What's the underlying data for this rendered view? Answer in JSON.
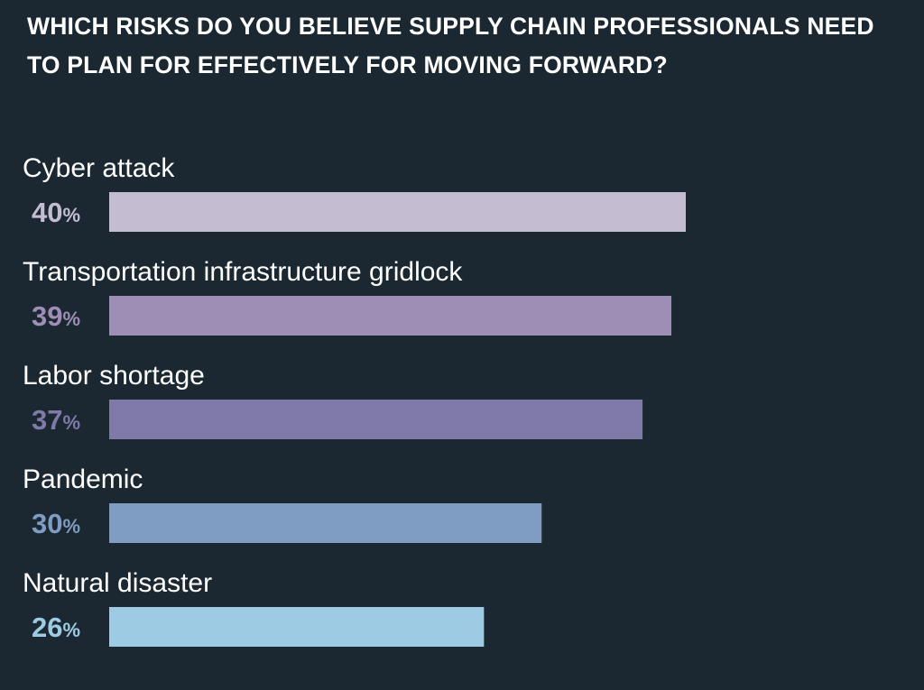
{
  "title": "WHICH RISKS DO YOU BELIEVE SUPPLY CHAIN PROFESSIONALS NEED TO PLAN FOR EFFECTIVELY FOR MOVING FORWARD?",
  "chart_data": {
    "type": "bar",
    "orientation": "horizontal",
    "title": "WHICH RISKS DO YOU BELIEVE SUPPLY CHAIN PROFESSIONALS NEED TO PLAN FOR EFFECTIVELY FOR MOVING FORWARD?",
    "xlabel": "",
    "ylabel": "",
    "categories": [
      "Cyber attack",
      "Transportation infrastructure gridlock",
      "Labor shortage",
      "Pandemic",
      "Natural disaster"
    ],
    "values": [
      40,
      39,
      37,
      30,
      26
    ],
    "value_labels": [
      "40%",
      "39%",
      "37%",
      "30%",
      "26%"
    ],
    "unit": "%",
    "colors": [
      "#c4bdd1",
      "#9e8db4",
      "#7f7aa7",
      "#7f9cc2",
      "#9ccbe3"
    ],
    "label_colors": [
      "#c4bdd1",
      "#9e8db4",
      "#7f7aa7",
      "#7f9cc2",
      "#9ccbe3"
    ],
    "category_label_color": "#ffffff",
    "background": "#1b2831",
    "grid": false,
    "legend": "none"
  }
}
